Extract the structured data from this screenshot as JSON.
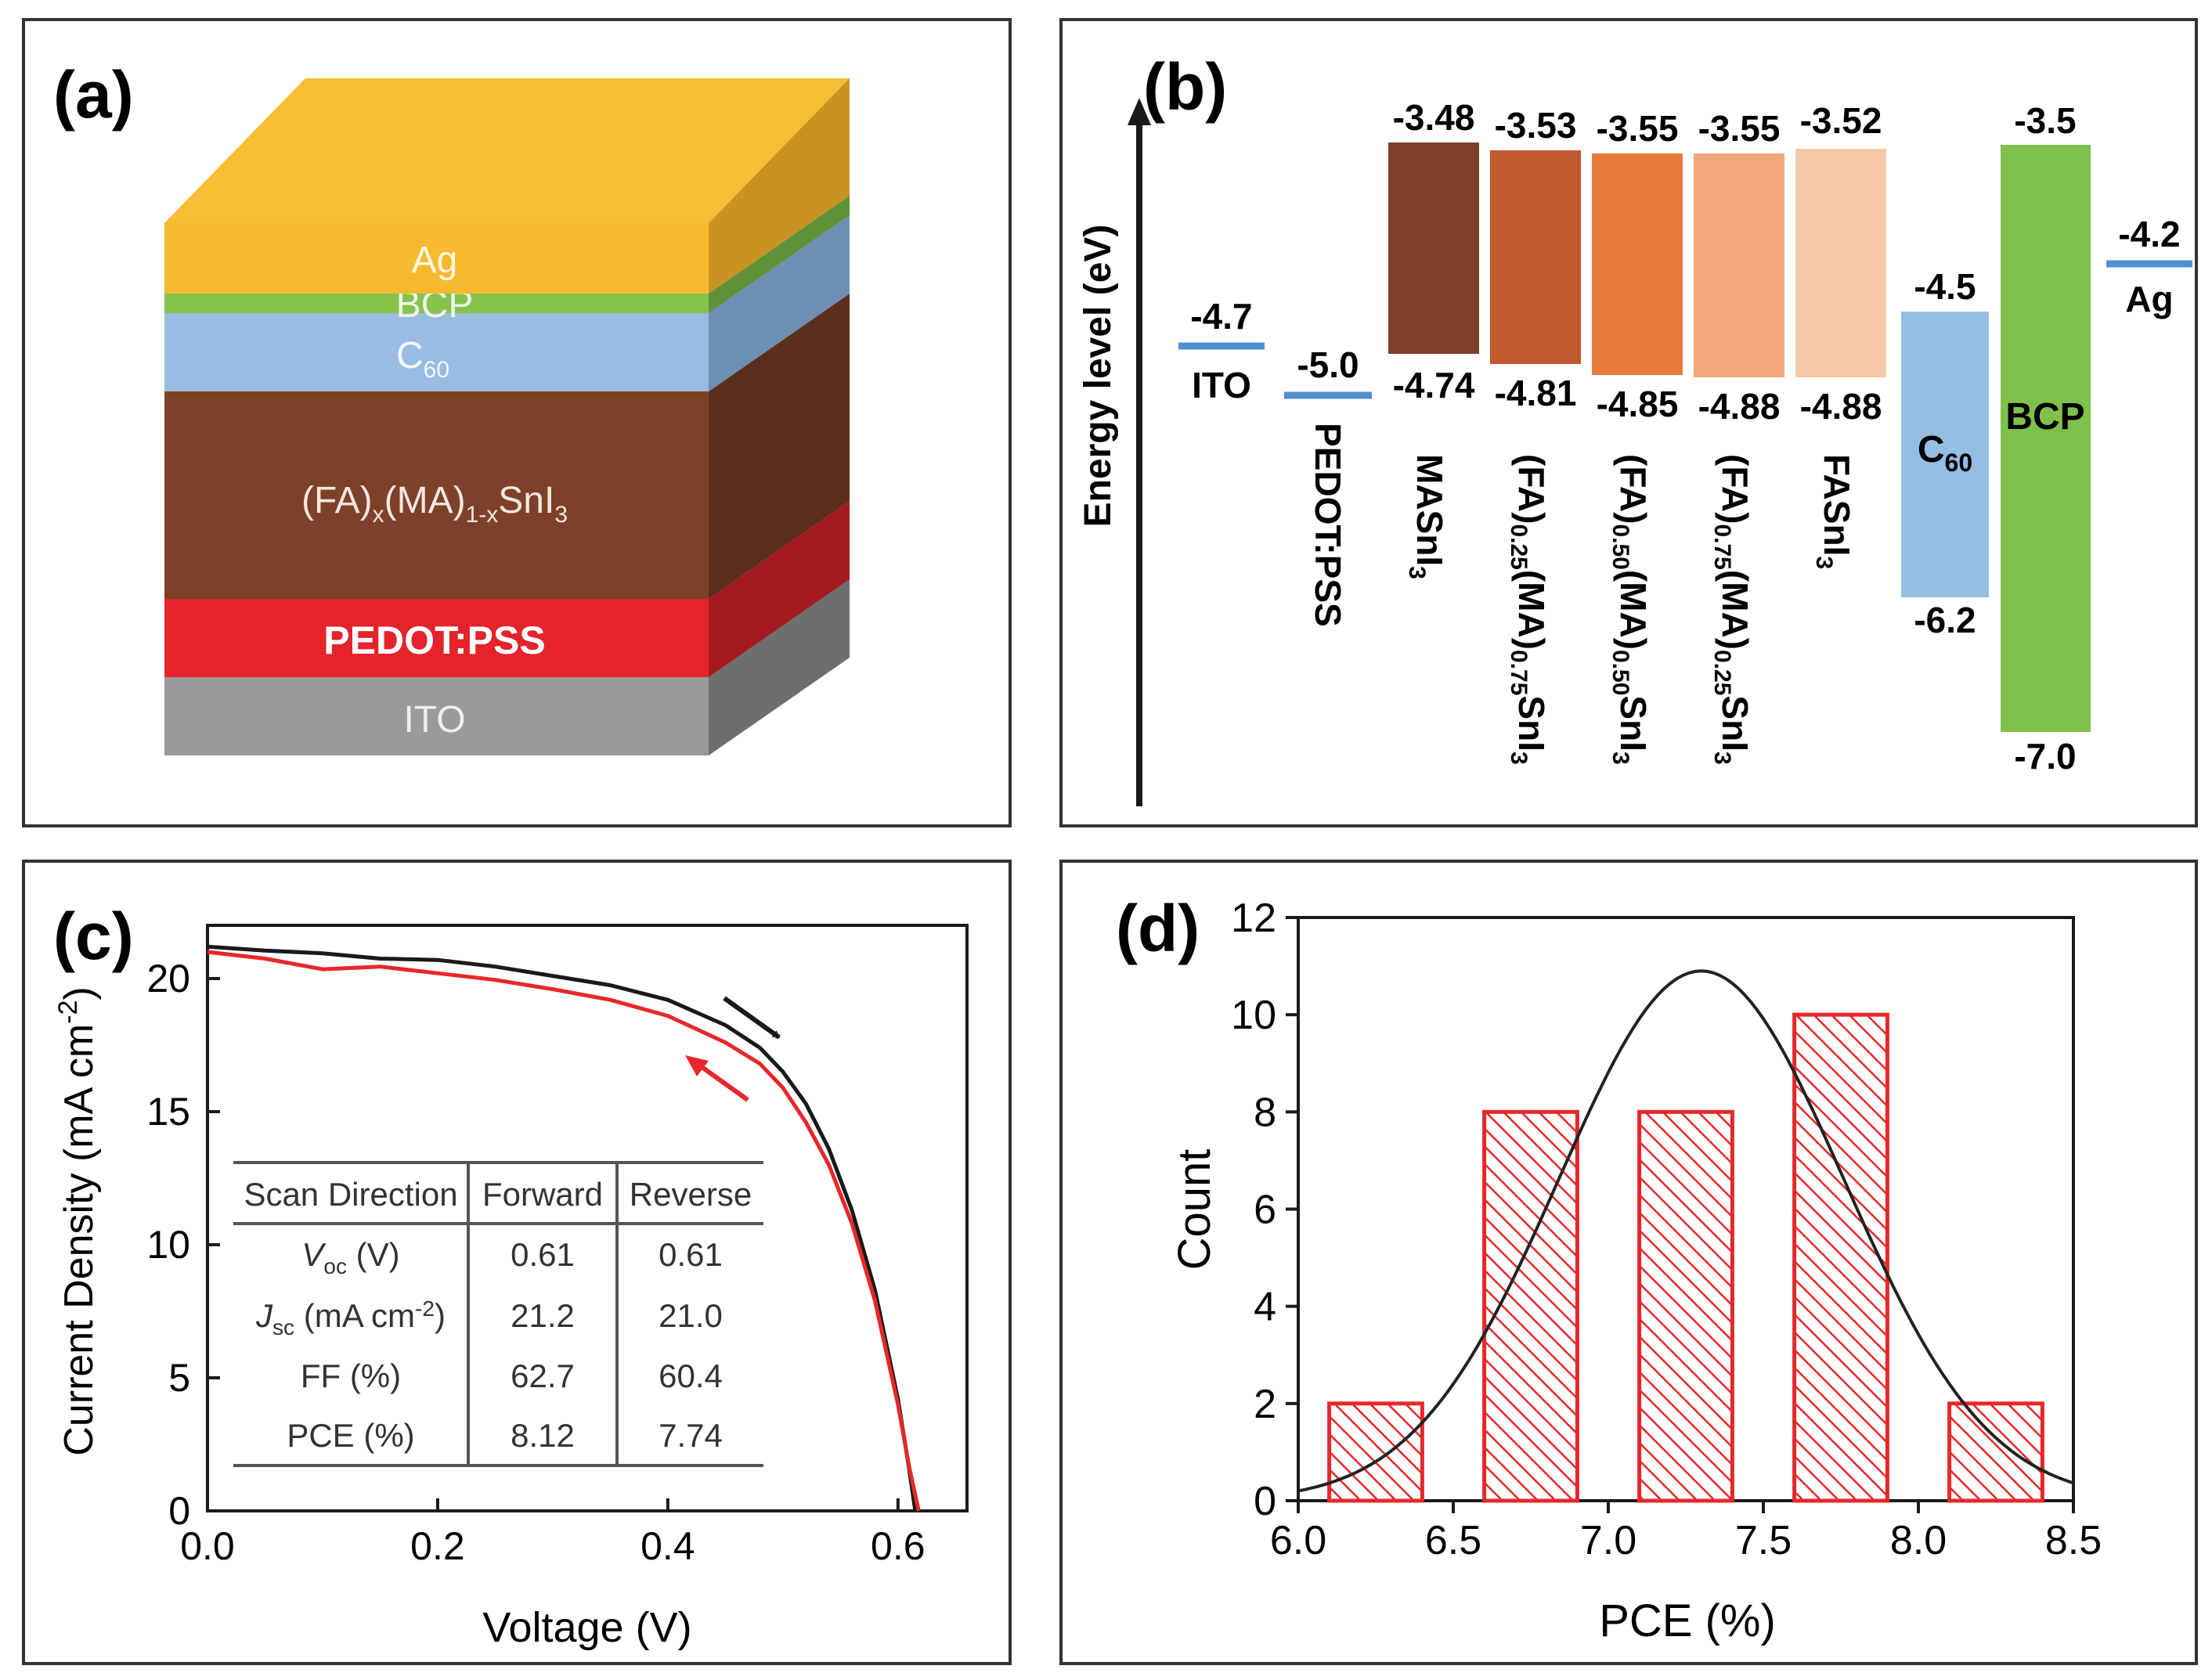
{
  "panels": {
    "a": {
      "label": "(a)",
      "layers": [
        {
          "name": "Ag",
          "color": "#f6ba2e"
        },
        {
          "name": "BCP",
          "color": "#86c34c"
        },
        {
          "name": "C60",
          "color": "#99bde2"
        },
        {
          "name": "(FA)x(MA)1-xSnI3",
          "color": "#7d4028"
        },
        {
          "name": "PEDOT:PSS",
          "color": "#e4232b"
        },
        {
          "name": "ITO",
          "color": "#969696"
        }
      ]
    },
    "b": {
      "label": "(b)",
      "ylabel": "Energy level (eV)",
      "electrodes": [
        {
          "name": "ITO",
          "level": "-4.7",
          "color": "#4f8fd0"
        },
        {
          "name": "PEDOT:PSS",
          "level": "-5.0",
          "color": "#4f8fd0"
        },
        {
          "name": "Ag",
          "level": "-4.2",
          "color": "#4f8fd0"
        }
      ],
      "absorbers": [
        {
          "name": "MASnI3",
          "top": "-3.48",
          "bottom": "-4.74",
          "color": "#7f4129"
        },
        {
          "name": "(FA)0.25(MA)0.75SnI3",
          "top": "-3.53",
          "bottom": "-4.81",
          "color": "#c0592e"
        },
        {
          "name": "(FA)0.50(MA)0.50SnI3",
          "top": "-3.55",
          "bottom": "-4.85",
          "color": "#ea7a3c"
        },
        {
          "name": "(FA)0.75(MA)0.25SnI3",
          "top": "-3.55",
          "bottom": "-4.88",
          "color": "#f2a87a"
        },
        {
          "name": "FASnI3",
          "top": "-3.52",
          "bottom": "-4.88",
          "color": "#f5c8a8"
        }
      ],
      "transport": [
        {
          "name": "C60",
          "top": "-4.5",
          "bottom": "-6.2",
          "color": "#96bde2"
        },
        {
          "name": "BCP",
          "top": "-3.5",
          "bottom": "-7.0",
          "color": "#7fc14c"
        }
      ]
    },
    "c": {
      "label": "(c)"
    },
    "d": {
      "label": "(d)"
    }
  },
  "jv_table": {
    "headers": [
      "Scan Direction",
      "Forward",
      "Reverse"
    ],
    "rows": [
      {
        "param": "Voc (V)",
        "forward": "0.61",
        "reverse": "0.61"
      },
      {
        "param": "Jsc (mA cm-2)",
        "forward": "21.2",
        "reverse": "21.0"
      },
      {
        "param": "FF (%)",
        "forward": "62.7",
        "reverse": "60.4"
      },
      {
        "param": "PCE (%)",
        "forward": "8.12",
        "reverse": "7.74"
      }
    ]
  },
  "chart_data": [
    {
      "type": "line",
      "panel": "c",
      "xlabel": "Voltage (V)",
      "ylabel": "Current Density (mA cm-2)",
      "xlim": [
        0,
        0.66
      ],
      "ylim": [
        0,
        22
      ],
      "xticks": [
        "0.0",
        "0.2",
        "0.4",
        "0.6"
      ],
      "xtick_values": [
        0,
        0.2,
        0.4,
        0.6
      ],
      "yticks": [
        "0",
        "5",
        "10",
        "15",
        "20"
      ],
      "ytick_values": [
        0,
        5,
        10,
        15,
        20
      ],
      "series": [
        {
          "name": "Forward",
          "color": "#1a1a1a",
          "x": [
            0,
            0.05,
            0.1,
            0.15,
            0.2,
            0.25,
            0.3,
            0.35,
            0.4,
            0.45,
            0.48,
            0.5,
            0.52,
            0.54,
            0.56,
            0.58,
            0.6,
            0.61,
            0.615
          ],
          "y": [
            21.2,
            21.05,
            20.95,
            20.75,
            20.7,
            20.45,
            20.1,
            19.75,
            19.2,
            18.25,
            17.4,
            16.5,
            15.3,
            13.6,
            11.3,
            8.3,
            4.2,
            1.5,
            0
          ]
        },
        {
          "name": "Reverse",
          "color": "#e8272a",
          "x": [
            0,
            0.05,
            0.1,
            0.15,
            0.2,
            0.25,
            0.3,
            0.35,
            0.4,
            0.45,
            0.48,
            0.5,
            0.52,
            0.54,
            0.56,
            0.58,
            0.6,
            0.61,
            0.618
          ],
          "y": [
            21.0,
            20.75,
            20.35,
            20.45,
            20.2,
            19.95,
            19.6,
            19.2,
            18.6,
            17.6,
            16.8,
            15.9,
            14.6,
            13.0,
            10.8,
            7.9,
            4.0,
            1.6,
            0
          ]
        }
      ]
    },
    {
      "type": "bar",
      "panel": "d",
      "xlabel": "PCE (%)",
      "ylabel": "Count",
      "xlim": [
        6.0,
        8.5
      ],
      "ylim": [
        0,
        12
      ],
      "xticks": [
        "6.0",
        "6.5",
        "7.0",
        "7.5",
        "8.0",
        "8.5"
      ],
      "xtick_values": [
        6.0,
        6.5,
        7.0,
        7.5,
        8.0,
        8.5
      ],
      "yticks": [
        "0",
        "2",
        "4",
        "6",
        "8",
        "10",
        "12"
      ],
      "ytick_values": [
        0,
        2,
        4,
        6,
        8,
        10,
        12
      ],
      "bins": [
        {
          "from": 6.1,
          "to": 6.4,
          "count": 2
        },
        {
          "from": 6.6,
          "to": 6.9,
          "count": 8
        },
        {
          "from": 7.1,
          "to": 7.4,
          "count": 8
        },
        {
          "from": 7.6,
          "to": 7.9,
          "count": 10
        },
        {
          "from": 8.1,
          "to": 8.4,
          "count": 2
        }
      ],
      "fit": {
        "type": "gaussian",
        "mean": 7.3,
        "sigma": 0.46,
        "peak": 10.9
      },
      "bar_color": "#e8272a",
      "fit_color": "#222222"
    }
  ]
}
